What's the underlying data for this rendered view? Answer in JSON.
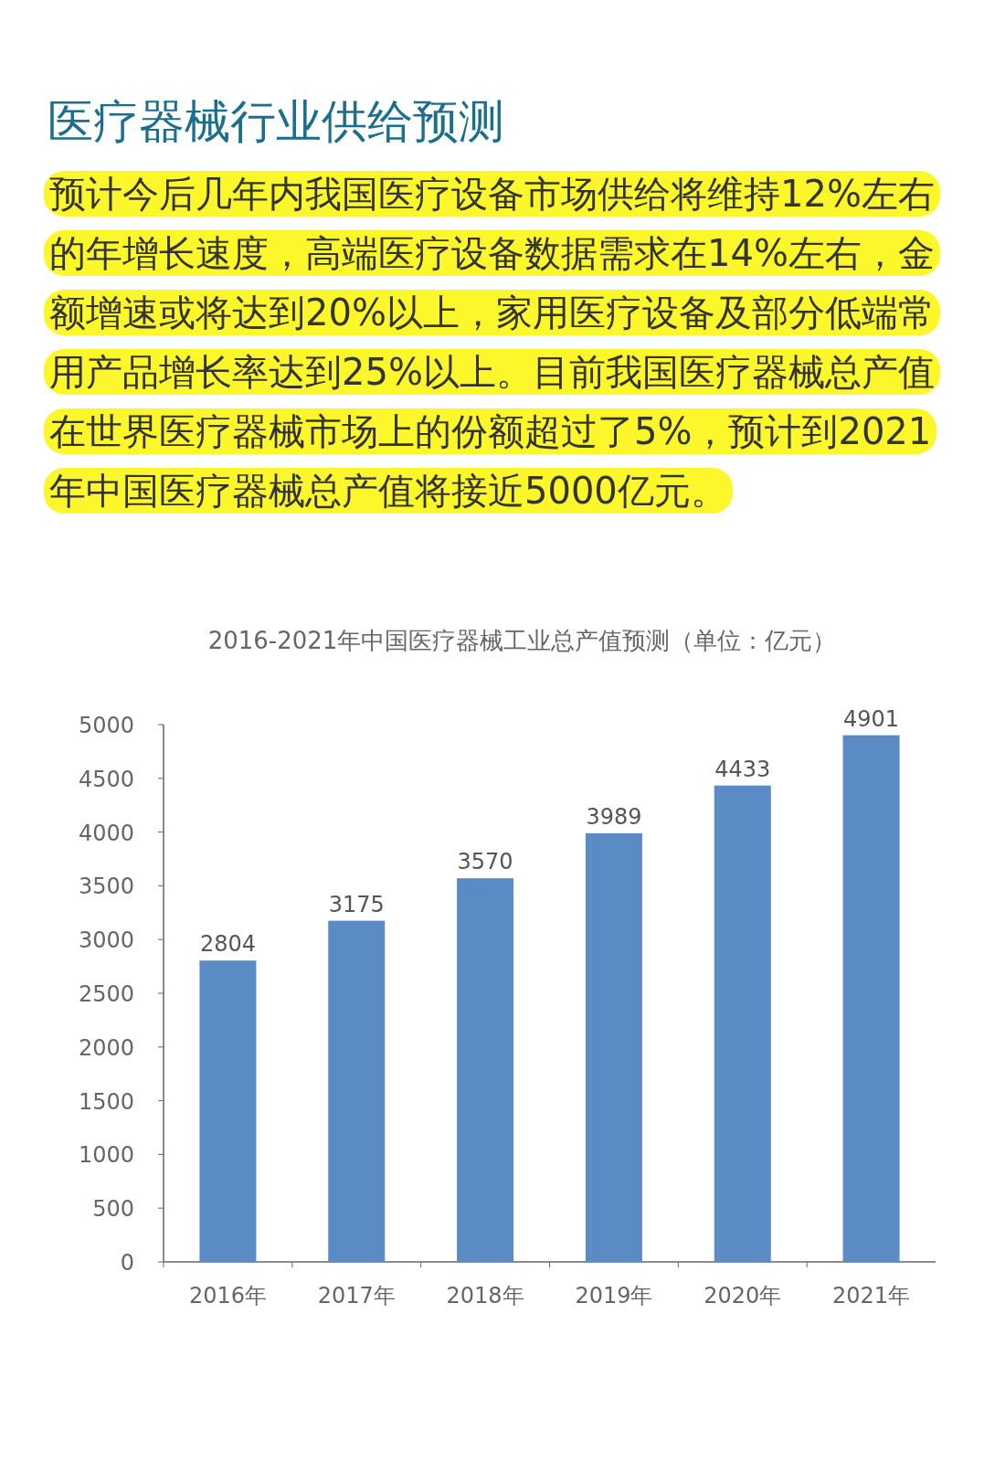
{
  "chart_data": {
    "type": "bar",
    "title": "医疗器械行业供给预测",
    "subtitle": "预计今后几年内我国医疗设备市场供给将维持12%左右的年增长速度，高端医疗设备数据需求在14%左右，金额增速或将达到20%以上，家用医疗设备及部分低端常用产品增长率达到25%以上。目前我国医疗器械总产值在世界医疗器械市场上的份额超过了5%，预计到2021年中国医疗器械总产值将接近5000亿元。",
    "annotations": [
      "2016-2021年中国医疗器械工业总产值预测（单位：亿元）"
    ],
    "categories": [
      "2016年",
      "2017年",
      "2018年",
      "2019年",
      "2020年",
      "2021年"
    ],
    "values": [
      2804,
      3175,
      3570,
      3989,
      4433,
      4901
    ],
    "color": "#5b8bc5",
    "ylim": [
      0,
      5000
    ],
    "yticks": [
      0,
      500,
      1000,
      1500,
      2000,
      2500,
      3000,
      3500,
      4000,
      4500,
      5000
    ],
    "grid": false,
    "data_labels": true
  }
}
